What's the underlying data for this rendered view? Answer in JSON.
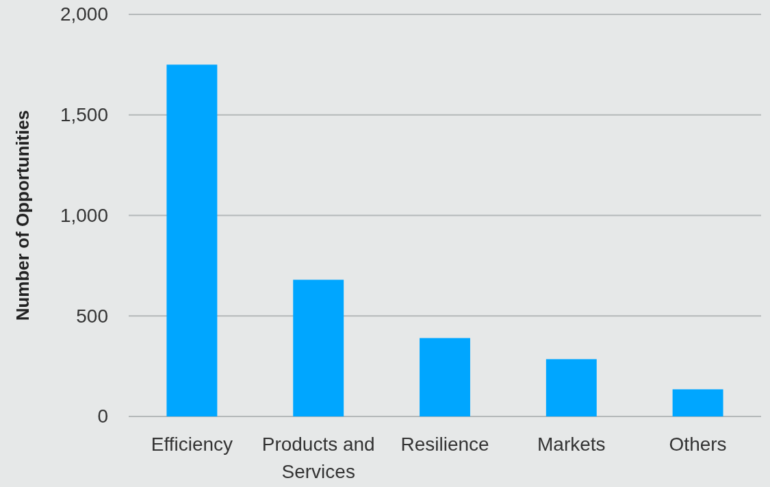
{
  "chart_data": {
    "type": "bar",
    "ylabel": "Number of Opportunities",
    "categories": [
      "Efficiency",
      "Products and Services",
      "Resilience",
      "Markets",
      "Others"
    ],
    "values": [
      1750,
      680,
      390,
      285,
      135
    ],
    "color": "#00a6ff",
    "ylim": [
      0,
      2000
    ],
    "yticks": [
      0,
      {
        "value": 500,
        "label": "500"
      },
      {
        "value": 1000,
        "label": "1,000"
      },
      {
        "value": 1500,
        "label": "1,500"
      },
      {
        "value": 2000,
        "label": "2,000"
      }
    ],
    "grid": "y"
  }
}
